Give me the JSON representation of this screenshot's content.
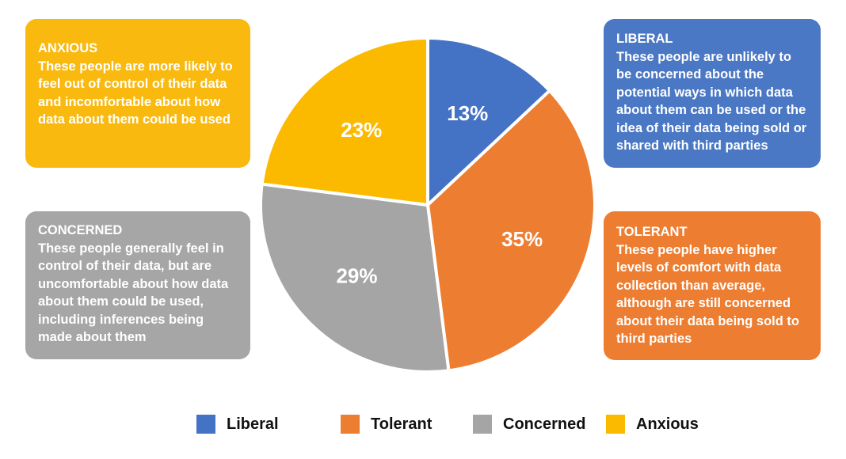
{
  "chart_data": {
    "type": "pie",
    "start": "top",
    "direction": "clockwise",
    "categories": [
      "Liberal",
      "Tolerant",
      "Concerned",
      "Anxious"
    ],
    "values": [
      13,
      35,
      29,
      23
    ],
    "data_labels": [
      "13%",
      "35%",
      "29%",
      "23%"
    ],
    "colors": [
      "#4472C4",
      "#ED7D31",
      "#A5A5A5",
      "#FBBA00"
    ],
    "legend": {
      "placement": "bottom",
      "entries": [
        "Liberal",
        "Tolerant",
        "Concerned",
        "Anxious"
      ]
    }
  },
  "boxes": {
    "anxious": {
      "title": "ANXIOUS",
      "text": "These people are more likely to feel out of control of their data and incomfortable about how data about them could be used"
    },
    "concerned": {
      "title": "CONCERNED",
      "text": "These people generally feel in control of their data, but are uncomfortable about how data about them could be used, including inferences being made about them"
    },
    "liberal": {
      "title": "LIBERAL",
      "text": "These people are unlikely to be concerned about the potential ways in which data about them can be used or the idea of their data being sold or shared with third parties"
    },
    "tolerant": {
      "title": "TOLERANT",
      "text": "These people have higher levels of comfort with data collection than average, although are still concerned about their data being sold to third parties"
    }
  }
}
